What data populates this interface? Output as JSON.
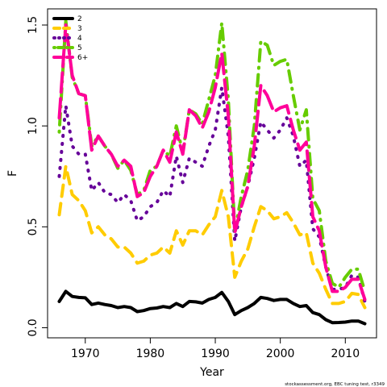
{
  "chart_data": {
    "type": "line",
    "title": "",
    "xlabel": "Year",
    "ylabel": "F",
    "xlim": [
      1964.2,
      2014.8
    ],
    "ylim": [
      -0.05,
      1.58
    ],
    "xticks": [
      1970,
      1980,
      1990,
      2000,
      2010
    ],
    "yticks": [
      0.0,
      0.5,
      1.0,
      1.5
    ],
    "ytick_labels": [
      "0.0",
      "0.5",
      "1.0",
      "1.5"
    ],
    "grid": false,
    "legend_position": "top-left",
    "footnote": "stockassessment.org, EBC tuning test, r3349",
    "x": [
      1966,
      1967,
      1968,
      1969,
      1970,
      1971,
      1972,
      1973,
      1974,
      1975,
      1976,
      1977,
      1978,
      1979,
      1980,
      1981,
      1982,
      1983,
      1984,
      1985,
      1986,
      1987,
      1988,
      1989,
      1990,
      1991,
      1992,
      1993,
      1994,
      1995,
      1996,
      1997,
      1998,
      1999,
      2000,
      2001,
      2002,
      2003,
      2004,
      2005,
      2006,
      2007,
      2008,
      2009,
      2010,
      2011,
      2012,
      2013
    ],
    "series": [
      {
        "name": "2",
        "color": "#000000",
        "dash": "solid",
        "values": [
          0.13,
          0.18,
          0.155,
          0.15,
          0.148,
          0.115,
          0.122,
          0.115,
          0.11,
          0.1,
          0.105,
          0.1,
          0.08,
          0.085,
          0.095,
          0.098,
          0.105,
          0.1,
          0.12,
          0.105,
          0.13,
          0.128,
          0.122,
          0.14,
          0.15,
          0.175,
          0.13,
          0.065,
          0.085,
          0.1,
          0.12,
          0.15,
          0.145,
          0.135,
          0.14,
          0.14,
          0.12,
          0.105,
          0.11,
          0.075,
          0.065,
          0.04,
          0.025,
          0.026,
          0.028,
          0.033,
          0.033,
          0.02
        ]
      },
      {
        "name": "3",
        "color": "#FFCC00",
        "dash": "dashed",
        "values": [
          0.56,
          0.8,
          0.66,
          0.63,
          0.58,
          0.47,
          0.5,
          0.46,
          0.44,
          0.4,
          0.4,
          0.37,
          0.32,
          0.33,
          0.36,
          0.37,
          0.4,
          0.37,
          0.48,
          0.41,
          0.48,
          0.48,
          0.46,
          0.51,
          0.55,
          0.68,
          0.55,
          0.25,
          0.33,
          0.39,
          0.5,
          0.6,
          0.58,
          0.54,
          0.55,
          0.57,
          0.52,
          0.46,
          0.47,
          0.32,
          0.27,
          0.19,
          0.12,
          0.12,
          0.13,
          0.17,
          0.165,
          0.1
        ]
      },
      {
        "name": "4",
        "color": "#660099",
        "dash": "dotted",
        "values": [
          0.75,
          1.1,
          0.9,
          0.86,
          0.86,
          0.68,
          0.72,
          0.67,
          0.66,
          0.62,
          0.66,
          0.63,
          0.53,
          0.55,
          0.6,
          0.62,
          0.68,
          0.65,
          0.85,
          0.72,
          0.84,
          0.82,
          0.8,
          0.9,
          0.98,
          1.19,
          0.95,
          0.43,
          0.6,
          0.7,
          0.84,
          1.02,
          0.98,
          0.94,
          0.98,
          1.04,
          0.95,
          0.8,
          0.83,
          0.49,
          0.45,
          0.3,
          0.19,
          0.19,
          0.2,
          0.26,
          0.25,
          0.13
        ]
      },
      {
        "name": "5",
        "color": "#66CC00",
        "dash": "dashdot",
        "values": [
          0.97,
          1.52,
          1.24,
          1.16,
          1.15,
          0.9,
          0.95,
          0.9,
          0.86,
          0.79,
          0.83,
          0.78,
          0.66,
          0.68,
          0.78,
          0.8,
          0.88,
          0.85,
          1.0,
          0.87,
          1.08,
          1.06,
          1.01,
          1.13,
          1.25,
          1.51,
          1.13,
          0.48,
          0.65,
          0.78,
          1.0,
          1.42,
          1.4,
          1.3,
          1.32,
          1.33,
          1.15,
          0.98,
          1.08,
          0.64,
          0.58,
          0.33,
          0.22,
          0.2,
          0.25,
          0.29,
          0.29,
          0.18
        ]
      },
      {
        "name": "6+",
        "color": "#FF0099",
        "dash": "longdash",
        "values": [
          1.04,
          1.5,
          1.25,
          1.16,
          1.15,
          0.88,
          0.95,
          0.9,
          0.86,
          0.8,
          0.83,
          0.8,
          0.65,
          0.67,
          0.75,
          0.8,
          0.88,
          0.82,
          0.97,
          0.86,
          1.08,
          1.05,
          0.99,
          1.07,
          1.19,
          1.36,
          1.05,
          0.47,
          0.6,
          0.7,
          0.9,
          1.2,
          1.15,
          1.07,
          1.09,
          1.1,
          0.98,
          0.88,
          0.92,
          0.55,
          0.48,
          0.3,
          0.18,
          0.18,
          0.2,
          0.24,
          0.24,
          0.14
        ]
      }
    ]
  }
}
